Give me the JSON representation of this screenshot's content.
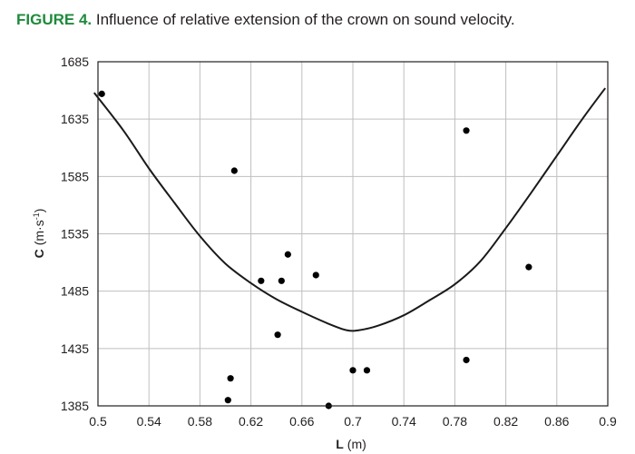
{
  "figure": {
    "label": "FIGURE 4.",
    "caption": "Influence of relative extension of the crown on sound velocity.",
    "label_color": "#1f8a3c"
  },
  "chart_data": {
    "type": "scatter",
    "title": "Influence of relative extension of the crown on sound velocity.",
    "xlabel": "L",
    "xlabel_unit": "(m)",
    "ylabel": "C",
    "ylabel_unit": "(m·s",
    "ylabel_sup": "-1",
    "xlim": [
      0.5,
      0.9
    ],
    "ylim": [
      1385,
      1685
    ],
    "xticks": [
      0.5,
      0.54,
      0.58,
      0.62,
      0.66,
      0.7,
      0.74,
      0.78,
      0.82,
      0.86,
      0.9
    ],
    "xtick_labels": [
      "0.5",
      "0.54",
      "0.58",
      "0.62",
      "0.66",
      "0.7",
      "0.74",
      "0.78",
      "0.82",
      "0.86",
      "0.9"
    ],
    "yticks": [
      1385,
      1435,
      1485,
      1535,
      1585,
      1635,
      1685
    ],
    "ytick_labels": [
      "1385",
      "1435",
      "1485",
      "1535",
      "1585",
      "1635",
      "1685"
    ],
    "grid": true,
    "points": [
      {
        "x": 0.503,
        "y": 1657
      },
      {
        "x": 0.602,
        "y": 1390
      },
      {
        "x": 0.604,
        "y": 1409
      },
      {
        "x": 0.607,
        "y": 1590
      },
      {
        "x": 0.628,
        "y": 1494
      },
      {
        "x": 0.641,
        "y": 1447
      },
      {
        "x": 0.644,
        "y": 1494
      },
      {
        "x": 0.649,
        "y": 1517
      },
      {
        "x": 0.671,
        "y": 1499
      },
      {
        "x": 0.681,
        "y": 1385
      },
      {
        "x": 0.7,
        "y": 1416
      },
      {
        "x": 0.711,
        "y": 1416
      },
      {
        "x": 0.789,
        "y": 1425
      },
      {
        "x": 0.789,
        "y": 1625
      },
      {
        "x": 0.838,
        "y": 1506
      }
    ],
    "fit_curve": [
      {
        "x": 0.497,
        "y": 1658
      },
      {
        "x": 0.52,
        "y": 1625
      },
      {
        "x": 0.54,
        "y": 1592
      },
      {
        "x": 0.56,
        "y": 1562
      },
      {
        "x": 0.58,
        "y": 1533
      },
      {
        "x": 0.6,
        "y": 1509
      },
      {
        "x": 0.62,
        "y": 1492
      },
      {
        "x": 0.64,
        "y": 1478
      },
      {
        "x": 0.66,
        "y": 1467
      },
      {
        "x": 0.68,
        "y": 1457
      },
      {
        "x": 0.695,
        "y": 1451
      },
      {
        "x": 0.705,
        "y": 1451
      },
      {
        "x": 0.72,
        "y": 1455
      },
      {
        "x": 0.74,
        "y": 1464
      },
      {
        "x": 0.76,
        "y": 1477
      },
      {
        "x": 0.78,
        "y": 1491
      },
      {
        "x": 0.8,
        "y": 1511
      },
      {
        "x": 0.82,
        "y": 1540
      },
      {
        "x": 0.84,
        "y": 1571
      },
      {
        "x": 0.86,
        "y": 1603
      },
      {
        "x": 0.88,
        "y": 1635
      },
      {
        "x": 0.898,
        "y": 1662
      }
    ],
    "point_color": "#000000",
    "curve_color": "#1a1a1a",
    "grid_color": "#bfbfbf",
    "axis_color": "#231f20"
  }
}
